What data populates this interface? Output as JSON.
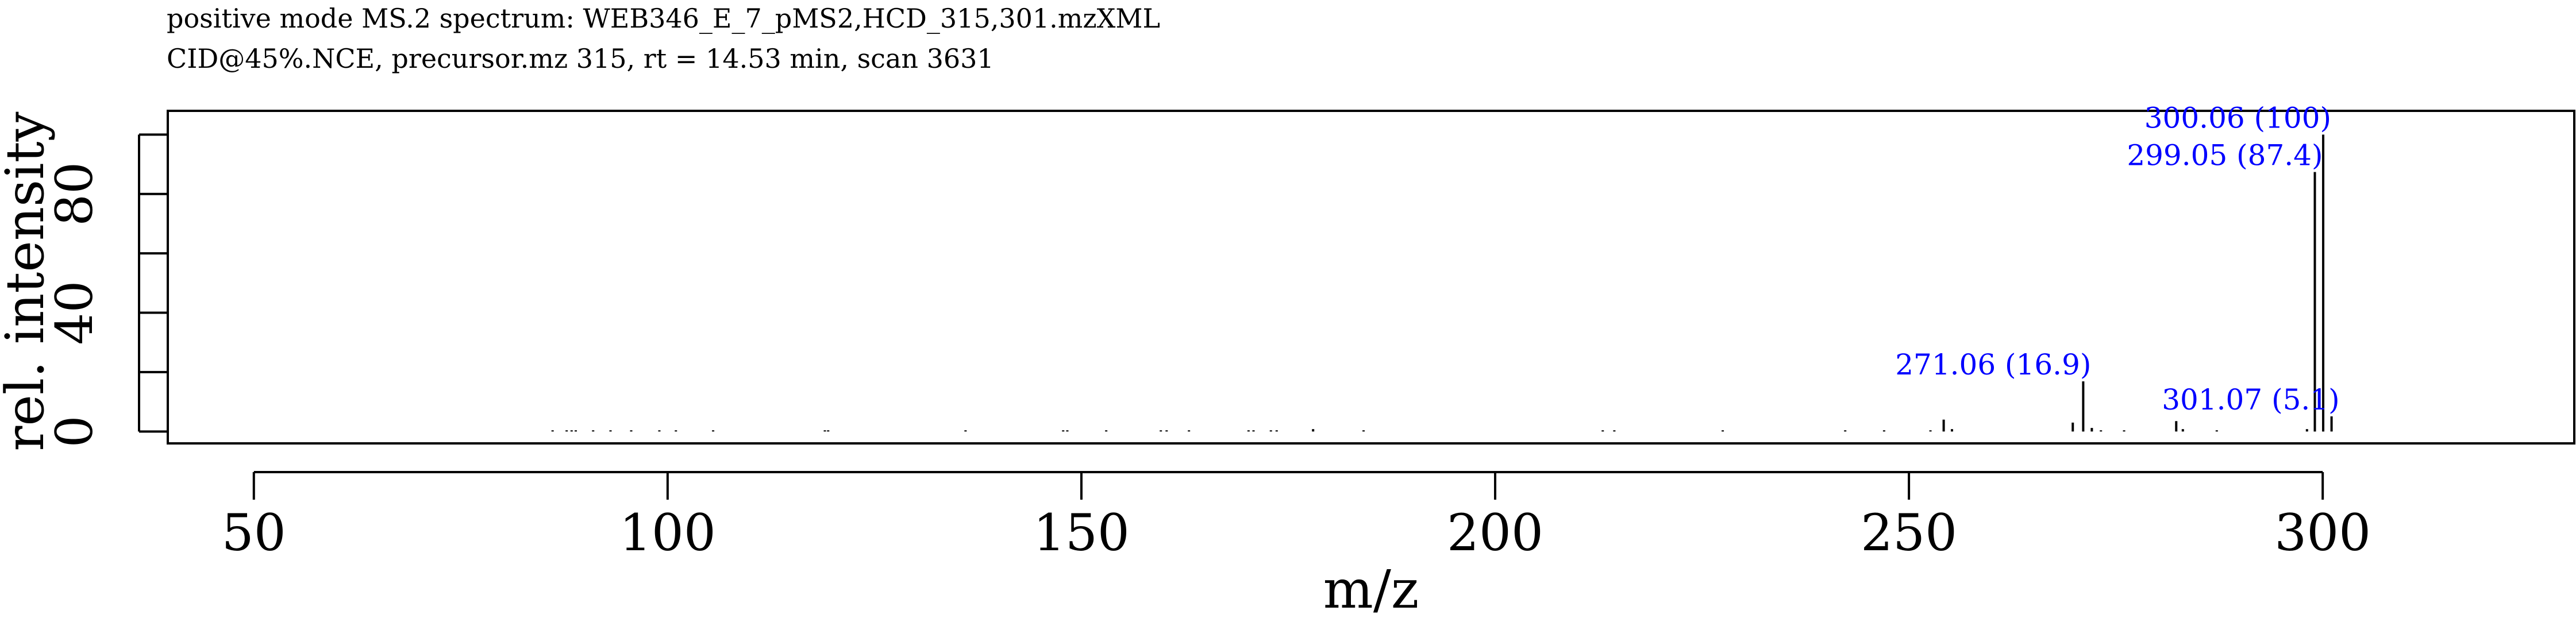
{
  "chart_data": {
    "type": "bar",
    "title_lines": [
      "positive mode MS.2 spectrum: WEB346_E_7_pMS2,HCD_315,301.mzXML",
      "CID@45%.NCE, precursor.mz 315, rt = 14.53 min, scan 3631"
    ],
    "xlabel": "m/z",
    "ylabel": "rel. intensity",
    "xlim": [
      39.6,
      330.4
    ],
    "ylim": [
      -4,
      108
    ],
    "xticks": [
      50,
      100,
      150,
      200,
      250,
      300
    ],
    "yticks": [
      0,
      20,
      40,
      60,
      80,
      100
    ],
    "ytick_labels": [
      "0",
      "",
      "40",
      "",
      "80",
      ""
    ],
    "label_color": "#0000ff",
    "peaks": [
      {
        "mz": 86.1,
        "intensity": 0.4
      },
      {
        "mz": 87.8,
        "intensity": 0.4
      },
      {
        "mz": 88.4,
        "intensity": 0.4
      },
      {
        "mz": 88.9,
        "intensity": 0.4
      },
      {
        "mz": 91.0,
        "intensity": 0.4
      },
      {
        "mz": 93.1,
        "intensity": 0.4
      },
      {
        "mz": 95.6,
        "intensity": 0.4
      },
      {
        "mz": 99.0,
        "intensity": 0.4
      },
      {
        "mz": 101.0,
        "intensity": 0.4
      },
      {
        "mz": 105.5,
        "intensity": 0.4
      },
      {
        "mz": 119.0,
        "intensity": 0.4
      },
      {
        "mz": 119.4,
        "intensity": 0.4
      },
      {
        "mz": 136.0,
        "intensity": 0.4
      },
      {
        "mz": 147.8,
        "intensity": 0.4
      },
      {
        "mz": 148.3,
        "intensity": 0.4
      },
      {
        "mz": 153.0,
        "intensity": 0.4
      },
      {
        "mz": 159.6,
        "intensity": 0.4
      },
      {
        "mz": 160.3,
        "intensity": 0.4
      },
      {
        "mz": 163.0,
        "intensity": 0.4
      },
      {
        "mz": 170.2,
        "intensity": 0.4
      },
      {
        "mz": 170.8,
        "intensity": 0.4
      },
      {
        "mz": 172.9,
        "intensity": 0.4
      },
      {
        "mz": 173.6,
        "intensity": 0.4
      },
      {
        "mz": 178.0,
        "intensity": 0.8
      },
      {
        "mz": 184.1,
        "intensity": 0.4
      },
      {
        "mz": 213.0,
        "intensity": 0.4
      },
      {
        "mz": 214.4,
        "intensity": 0.4
      },
      {
        "mz": 227.5,
        "intensity": 0.4
      },
      {
        "mz": 242.3,
        "intensity": 0.4
      },
      {
        "mz": 247.0,
        "intensity": 0.4
      },
      {
        "mz": 252.6,
        "intensity": 0.4
      },
      {
        "mz": 254.2,
        "intensity": 4.0
      },
      {
        "mz": 255.2,
        "intensity": 0.8
      },
      {
        "mz": 269.8,
        "intensity": 3.0
      },
      {
        "mz": 271.06,
        "intensity": 16.9,
        "label": "271.06 (16.9)"
      },
      {
        "mz": 272.1,
        "intensity": 1.2
      },
      {
        "mz": 273.2,
        "intensity": 0.4
      },
      {
        "mz": 276.0,
        "intensity": 0.4
      },
      {
        "mz": 282.3,
        "intensity": 3.5
      },
      {
        "mz": 283.1,
        "intensity": 0.8
      },
      {
        "mz": 287.2,
        "intensity": 0.4
      },
      {
        "mz": 298.1,
        "intensity": 0.8
      },
      {
        "mz": 299.05,
        "intensity": 87.4,
        "label": "299.05 (87.4)"
      },
      {
        "mz": 300.06,
        "intensity": 100,
        "label": "300.06 (100)"
      },
      {
        "mz": 301.07,
        "intensity": 5.1,
        "label": "301.07 (5.1)"
      }
    ]
  }
}
